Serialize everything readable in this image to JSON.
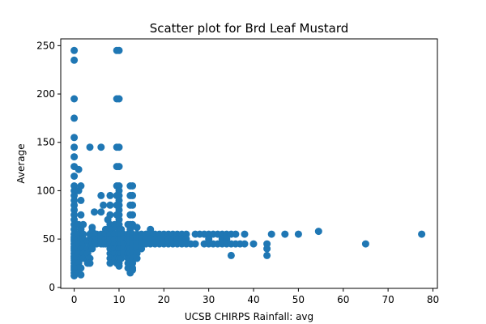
{
  "chart_data": {
    "type": "scatter",
    "title": "Scatter plot for Brd Leaf Mustard",
    "xlabel": "UCSB CHIRPS Rainfall: avg",
    "ylabel": "Average",
    "xlim": [
      -3,
      81
    ],
    "ylim": [
      -1,
      257
    ],
    "xticks": [
      0,
      10,
      20,
      30,
      40,
      50,
      60,
      70,
      80
    ],
    "yticks": [
      0,
      50,
      100,
      150,
      200,
      250
    ],
    "grid": false,
    "marker_color": "#1f77b4",
    "points": [
      [
        0,
        245
      ],
      [
        0,
        235
      ],
      [
        0,
        195
      ],
      [
        0,
        175
      ],
      [
        0,
        155
      ],
      [
        0,
        145
      ],
      [
        0,
        135
      ],
      [
        0,
        125
      ],
      [
        0,
        115
      ],
      [
        0,
        105
      ],
      [
        0,
        100
      ],
      [
        0,
        95
      ],
      [
        0,
        90
      ],
      [
        0,
        85
      ],
      [
        0,
        80
      ],
      [
        0,
        75
      ],
      [
        0,
        70
      ],
      [
        0,
        65
      ],
      [
        0,
        60
      ],
      [
        0,
        55
      ],
      [
        0,
        52
      ],
      [
        0,
        50
      ],
      [
        0,
        48
      ],
      [
        0,
        45
      ],
      [
        0,
        42
      ],
      [
        0,
        40
      ],
      [
        0,
        38
      ],
      [
        0,
        35
      ],
      [
        0,
        32
      ],
      [
        0,
        30
      ],
      [
        0,
        28
      ],
      [
        0,
        25
      ],
      [
        0,
        22
      ],
      [
        0,
        20
      ],
      [
        0,
        18
      ],
      [
        0,
        15
      ],
      [
        0,
        12
      ],
      [
        1,
        122
      ],
      [
        1,
        100
      ],
      [
        1,
        65
      ],
      [
        1,
        55
      ],
      [
        1,
        50
      ],
      [
        1,
        45
      ],
      [
        1,
        40
      ],
      [
        1,
        35
      ],
      [
        1,
        30
      ],
      [
        1,
        25
      ],
      [
        1,
        20
      ],
      [
        1,
        15
      ],
      [
        1.5,
        105
      ],
      [
        1.5,
        90
      ],
      [
        1.5,
        75
      ],
      [
        1.5,
        60
      ],
      [
        1.5,
        50
      ],
      [
        1.5,
        40
      ],
      [
        1.5,
        30
      ],
      [
        1.5,
        20
      ],
      [
        1.5,
        13
      ],
      [
        2,
        65
      ],
      [
        2,
        55
      ],
      [
        2,
        50
      ],
      [
        2,
        45
      ],
      [
        2,
        40
      ],
      [
        2,
        35
      ],
      [
        2,
        30
      ],
      [
        3,
        48
      ],
      [
        3,
        40
      ],
      [
        3,
        35
      ],
      [
        3,
        28
      ],
      [
        3,
        25
      ],
      [
        3.5,
        145
      ],
      [
        3.5,
        55
      ],
      [
        3.5,
        50
      ],
      [
        3.5,
        45
      ],
      [
        3.5,
        30
      ],
      [
        3.5,
        25
      ],
      [
        4,
        62
      ],
      [
        4,
        58
      ],
      [
        4,
        52
      ],
      [
        4,
        48
      ],
      [
        4,
        45
      ],
      [
        4,
        40
      ],
      [
        4.5,
        78
      ],
      [
        4.5,
        55
      ],
      [
        4.5,
        50
      ],
      [
        4.5,
        47
      ],
      [
        5,
        55
      ],
      [
        5,
        50
      ],
      [
        5,
        45
      ],
      [
        6,
        145
      ],
      [
        6,
        95
      ],
      [
        6,
        78
      ],
      [
        6,
        55
      ],
      [
        6,
        50
      ],
      [
        6,
        45
      ],
      [
        6.5,
        85
      ],
      [
        6.5,
        50
      ],
      [
        6.5,
        45
      ],
      [
        7,
        60
      ],
      [
        7,
        55
      ],
      [
        7,
        50
      ],
      [
        7,
        45
      ],
      [
        7.5,
        70
      ],
      [
        7.5,
        60
      ],
      [
        7.5,
        55
      ],
      [
        7.5,
        50
      ],
      [
        7.5,
        47
      ],
      [
        8,
        95
      ],
      [
        8,
        85
      ],
      [
        8,
        75
      ],
      [
        8,
        65
      ],
      [
        8,
        55
      ],
      [
        8,
        50
      ],
      [
        8,
        45
      ],
      [
        8,
        40
      ],
      [
        8,
        35
      ],
      [
        8,
        30
      ],
      [
        8,
        25
      ],
      [
        8.5,
        60
      ],
      [
        8.5,
        55
      ],
      [
        8.5,
        50
      ],
      [
        8.5,
        45
      ],
      [
        8.5,
        40
      ],
      [
        9,
        65
      ],
      [
        9,
        55
      ],
      [
        9,
        50
      ],
      [
        9,
        45
      ],
      [
        9,
        40
      ],
      [
        9,
        35
      ],
      [
        9,
        30
      ],
      [
        9.5,
        245
      ],
      [
        9.5,
        195
      ],
      [
        9.5,
        145
      ],
      [
        9.5,
        125
      ],
      [
        9.5,
        105
      ],
      [
        9.5,
        95
      ],
      [
        9.5,
        85
      ],
      [
        9.5,
        75
      ],
      [
        9.5,
        65
      ],
      [
        9.5,
        55
      ],
      [
        9.5,
        50
      ],
      [
        9.5,
        45
      ],
      [
        9.5,
        40
      ],
      [
        9.5,
        35
      ],
      [
        9.5,
        30
      ],
      [
        9.5,
        25
      ],
      [
        10,
        245
      ],
      [
        10,
        195
      ],
      [
        10,
        145
      ],
      [
        10,
        125
      ],
      [
        10,
        105
      ],
      [
        10,
        100
      ],
      [
        10,
        95
      ],
      [
        10,
        90
      ],
      [
        10,
        85
      ],
      [
        10,
        80
      ],
      [
        10,
        75
      ],
      [
        10,
        70
      ],
      [
        10,
        65
      ],
      [
        10,
        60
      ],
      [
        10,
        55
      ],
      [
        10,
        50
      ],
      [
        10,
        45
      ],
      [
        10,
        40
      ],
      [
        10,
        35
      ],
      [
        10,
        30
      ],
      [
        10,
        25
      ],
      [
        10,
        22
      ],
      [
        10.5,
        60
      ],
      [
        10.5,
        55
      ],
      [
        10.5,
        50
      ],
      [
        10.5,
        45
      ],
      [
        10.5,
        40
      ],
      [
        10.5,
        35
      ],
      [
        10.5,
        30
      ],
      [
        11,
        55
      ],
      [
        11,
        50
      ],
      [
        11,
        45
      ],
      [
        11,
        40
      ],
      [
        11,
        35
      ],
      [
        12,
        65
      ],
      [
        12,
        55
      ],
      [
        12,
        50
      ],
      [
        12,
        45
      ],
      [
        12,
        40
      ],
      [
        12,
        35
      ],
      [
        12,
        30
      ],
      [
        12,
        25
      ],
      [
        12,
        20
      ],
      [
        12.5,
        105
      ],
      [
        12.5,
        95
      ],
      [
        12.5,
        85
      ],
      [
        12.5,
        75
      ],
      [
        12.5,
        65
      ],
      [
        12.5,
        60
      ],
      [
        12.5,
        55
      ],
      [
        12.5,
        50
      ],
      [
        12.5,
        45
      ],
      [
        12.5,
        40
      ],
      [
        12.5,
        35
      ],
      [
        12.5,
        30
      ],
      [
        12.5,
        25
      ],
      [
        12.5,
        20
      ],
      [
        12.5,
        15
      ],
      [
        13,
        105
      ],
      [
        13,
        95
      ],
      [
        13,
        85
      ],
      [
        13,
        75
      ],
      [
        13,
        65
      ],
      [
        13,
        55
      ],
      [
        13,
        50
      ],
      [
        13,
        45
      ],
      [
        13,
        40
      ],
      [
        13,
        35
      ],
      [
        13,
        30
      ],
      [
        13,
        25
      ],
      [
        13,
        20
      ],
      [
        13,
        18
      ],
      [
        14,
        62
      ],
      [
        14,
        55
      ],
      [
        14,
        50
      ],
      [
        14,
        45
      ],
      [
        14,
        40
      ],
      [
        14,
        35
      ],
      [
        14,
        30
      ],
      [
        15,
        55
      ],
      [
        15,
        50
      ],
      [
        15,
        45
      ],
      [
        15,
        40
      ],
      [
        16,
        55
      ],
      [
        16,
        50
      ],
      [
        16,
        45
      ],
      [
        17,
        60
      ],
      [
        17,
        55
      ],
      [
        17,
        50
      ],
      [
        17,
        45
      ],
      [
        18,
        55
      ],
      [
        18,
        50
      ],
      [
        18,
        45
      ],
      [
        19,
        55
      ],
      [
        19,
        50
      ],
      [
        19,
        45
      ],
      [
        20,
        55
      ],
      [
        20,
        50
      ],
      [
        20,
        45
      ],
      [
        21,
        55
      ],
      [
        21,
        50
      ],
      [
        21,
        45
      ],
      [
        22,
        55
      ],
      [
        22,
        50
      ],
      [
        22,
        45
      ],
      [
        23,
        55
      ],
      [
        23,
        50
      ],
      [
        23,
        45
      ],
      [
        24,
        55
      ],
      [
        24,
        50
      ],
      [
        24,
        45
      ],
      [
        25,
        55
      ],
      [
        25,
        50
      ],
      [
        25,
        45
      ],
      [
        26,
        45
      ],
      [
        27,
        55
      ],
      [
        27,
        45
      ],
      [
        28,
        55
      ],
      [
        29,
        55
      ],
      [
        29,
        45
      ],
      [
        30,
        55
      ],
      [
        30,
        50
      ],
      [
        30,
        45
      ],
      [
        31,
        55
      ],
      [
        31,
        45
      ],
      [
        32,
        55
      ],
      [
        32,
        45
      ],
      [
        33,
        55
      ],
      [
        33,
        50
      ],
      [
        33,
        45
      ],
      [
        34,
        55
      ],
      [
        34,
        50
      ],
      [
        34,
        45
      ],
      [
        35,
        55
      ],
      [
        35,
        45
      ],
      [
        35,
        33
      ],
      [
        36,
        55
      ],
      [
        36,
        45
      ],
      [
        37,
        45
      ],
      [
        38,
        55
      ],
      [
        38,
        45
      ],
      [
        40,
        45
      ],
      [
        43,
        45
      ],
      [
        43,
        40
      ],
      [
        43,
        33
      ],
      [
        44,
        55
      ],
      [
        47,
        55
      ],
      [
        50,
        55
      ],
      [
        54.5,
        58
      ],
      [
        65,
        45
      ],
      [
        77.5,
        55
      ]
    ]
  }
}
